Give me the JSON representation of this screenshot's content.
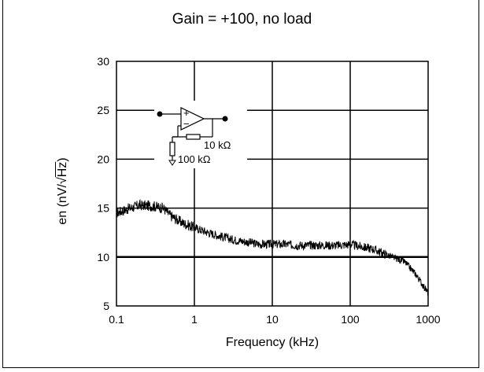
{
  "chart_data": {
    "type": "line",
    "title": "Gain = +100, no load",
    "xlabel": "Frequency (kHz)",
    "ylabel_prefix": "en (nV/",
    "ylabel_sqrt": "√",
    "ylabel_unit": "Hz",
    "ylabel_suffix": ")",
    "xscale": "log",
    "xlim": [
      0.1,
      1000
    ],
    "ylim": [
      5,
      30
    ],
    "grid": true,
    "x_ticks": [
      "0.1",
      "1",
      "10",
      "100",
      "1000"
    ],
    "y_ticks": [
      "5",
      "10",
      "15",
      "20",
      "25",
      "30"
    ],
    "x_tick_values": [
      0.1,
      1,
      10,
      100,
      1000
    ],
    "y_tick_values": [
      5,
      10,
      15,
      20,
      25,
      30
    ],
    "series": [
      {
        "x": [
          0.1,
          0.15,
          0.2,
          0.3,
          0.4,
          0.5,
          0.7,
          1,
          1.5,
          2,
          3,
          5,
          7,
          10,
          15,
          20,
          30,
          50,
          70,
          100,
          150,
          200,
          300,
          500,
          700,
          1000
        ],
        "y": [
          14.5,
          15.0,
          15.3,
          15.2,
          15.0,
          14.2,
          13.5,
          13.0,
          12.5,
          12.2,
          11.8,
          11.5,
          11.3,
          11.3,
          11.3,
          11.2,
          11.2,
          11.2,
          11.2,
          11.3,
          11.0,
          10.8,
          10.2,
          9.5,
          8.2,
          6.3
        ],
        "color": "#000000"
      }
    ],
    "inset": {
      "resistor_feedback": "10 kΩ",
      "resistor_ground": "100 kΩ",
      "plus": "+",
      "minus": "−"
    }
  }
}
